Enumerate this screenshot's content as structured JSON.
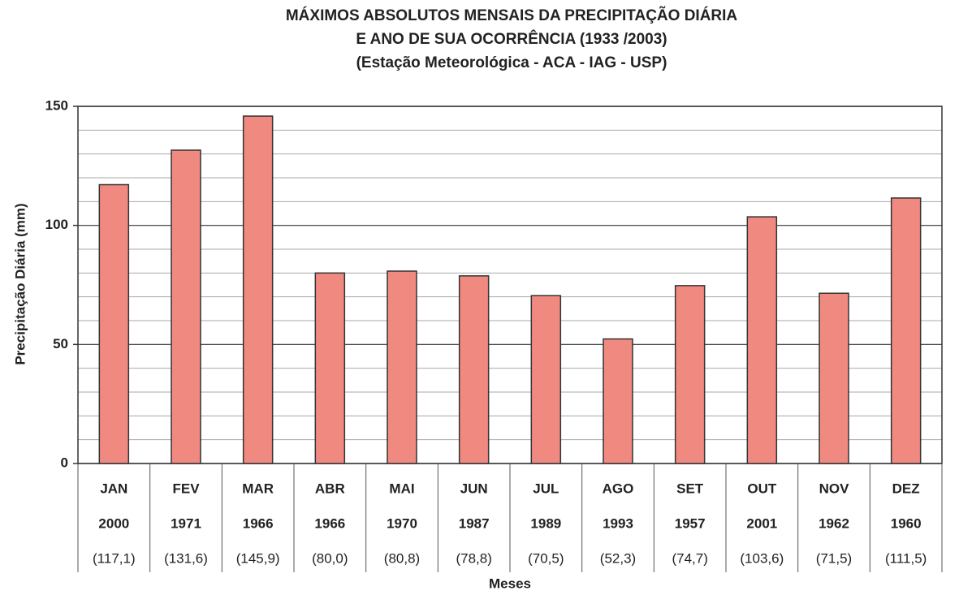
{
  "chart_data": {
    "type": "bar",
    "title": [
      "MÁXIMOS ABSOLUTOS MENSAIS DA PRECIPITAÇÃO DIÁRIA",
      "E ANO DE SUA OCORRÊNCIA (1933 /2003)",
      "(Estação Meteorológica - ACA - IAG - USP)"
    ],
    "y_label": "Precipitação Diária (mm)",
    "x_label": "Meses",
    "categories": [
      "JAN",
      "FEV",
      "MAR",
      "ABR",
      "MAI",
      "JUN",
      "JUL",
      "AGO",
      "SET",
      "OUT",
      "NOV",
      "DEZ"
    ],
    "years": [
      "2000",
      "1971",
      "1966",
      "1966",
      "1970",
      "1987",
      "1989",
      "1993",
      "1957",
      "2001",
      "1962",
      "1960"
    ],
    "values": [
      117.1,
      131.6,
      145.9,
      80.0,
      80.8,
      78.8,
      70.5,
      52.3,
      74.7,
      103.6,
      71.5,
      111.5
    ],
    "value_labels": [
      "(117,1)",
      "(131,6)",
      "(145,9)",
      "(80,0)",
      "(80,8)",
      "(78,8)",
      "(70,5)",
      "(52,3)",
      "(74,7)",
      "(103,6)",
      "(71,5)",
      "(111,5)"
    ],
    "color": "#f08a80",
    "ylim": [
      0,
      150
    ],
    "yticks": [
      0,
      50,
      100,
      150
    ],
    "minor_yticks": [
      10,
      20,
      30,
      40,
      60,
      70,
      80,
      90,
      110,
      120,
      130,
      140
    ],
    "grid": true
  }
}
